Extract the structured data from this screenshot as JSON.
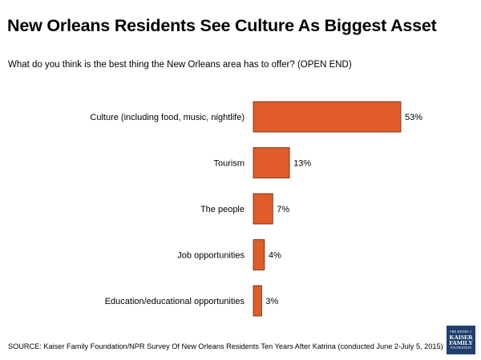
{
  "title": "New Orleans Residents See Culture As Biggest Asset",
  "subtitle": "What do you think is the best thing the New Orleans area has to offer? (OPEN END)",
  "source": "SOURCE: Kaiser Family Foundation/NPR Survey Of New Orleans Residents Ten Years After Katrina (conducted June 2-July 5, 2015)",
  "logo": {
    "line1": "THE HENRY J.",
    "line2": "KAISER",
    "line3": "FAMILY",
    "line4": "FOUNDATION"
  },
  "colors": {
    "bar": "#e05c28",
    "bar_border": "#5a2a12",
    "logo_bg": "#1f3f6f"
  },
  "chart_data": {
    "type": "bar",
    "orientation": "horizontal",
    "categories": [
      "Culture (including food, music, nightlife)",
      "Tourism",
      "The people",
      "Job opportunities",
      "Education/educational opportunities"
    ],
    "values": [
      53,
      13,
      7,
      4,
      3
    ],
    "value_labels": [
      "53%",
      "13%",
      "7%",
      "4%",
      "3%"
    ],
    "unit": "%",
    "xlim": [
      0,
      53
    ],
    "grid": false,
    "legend": "none"
  }
}
